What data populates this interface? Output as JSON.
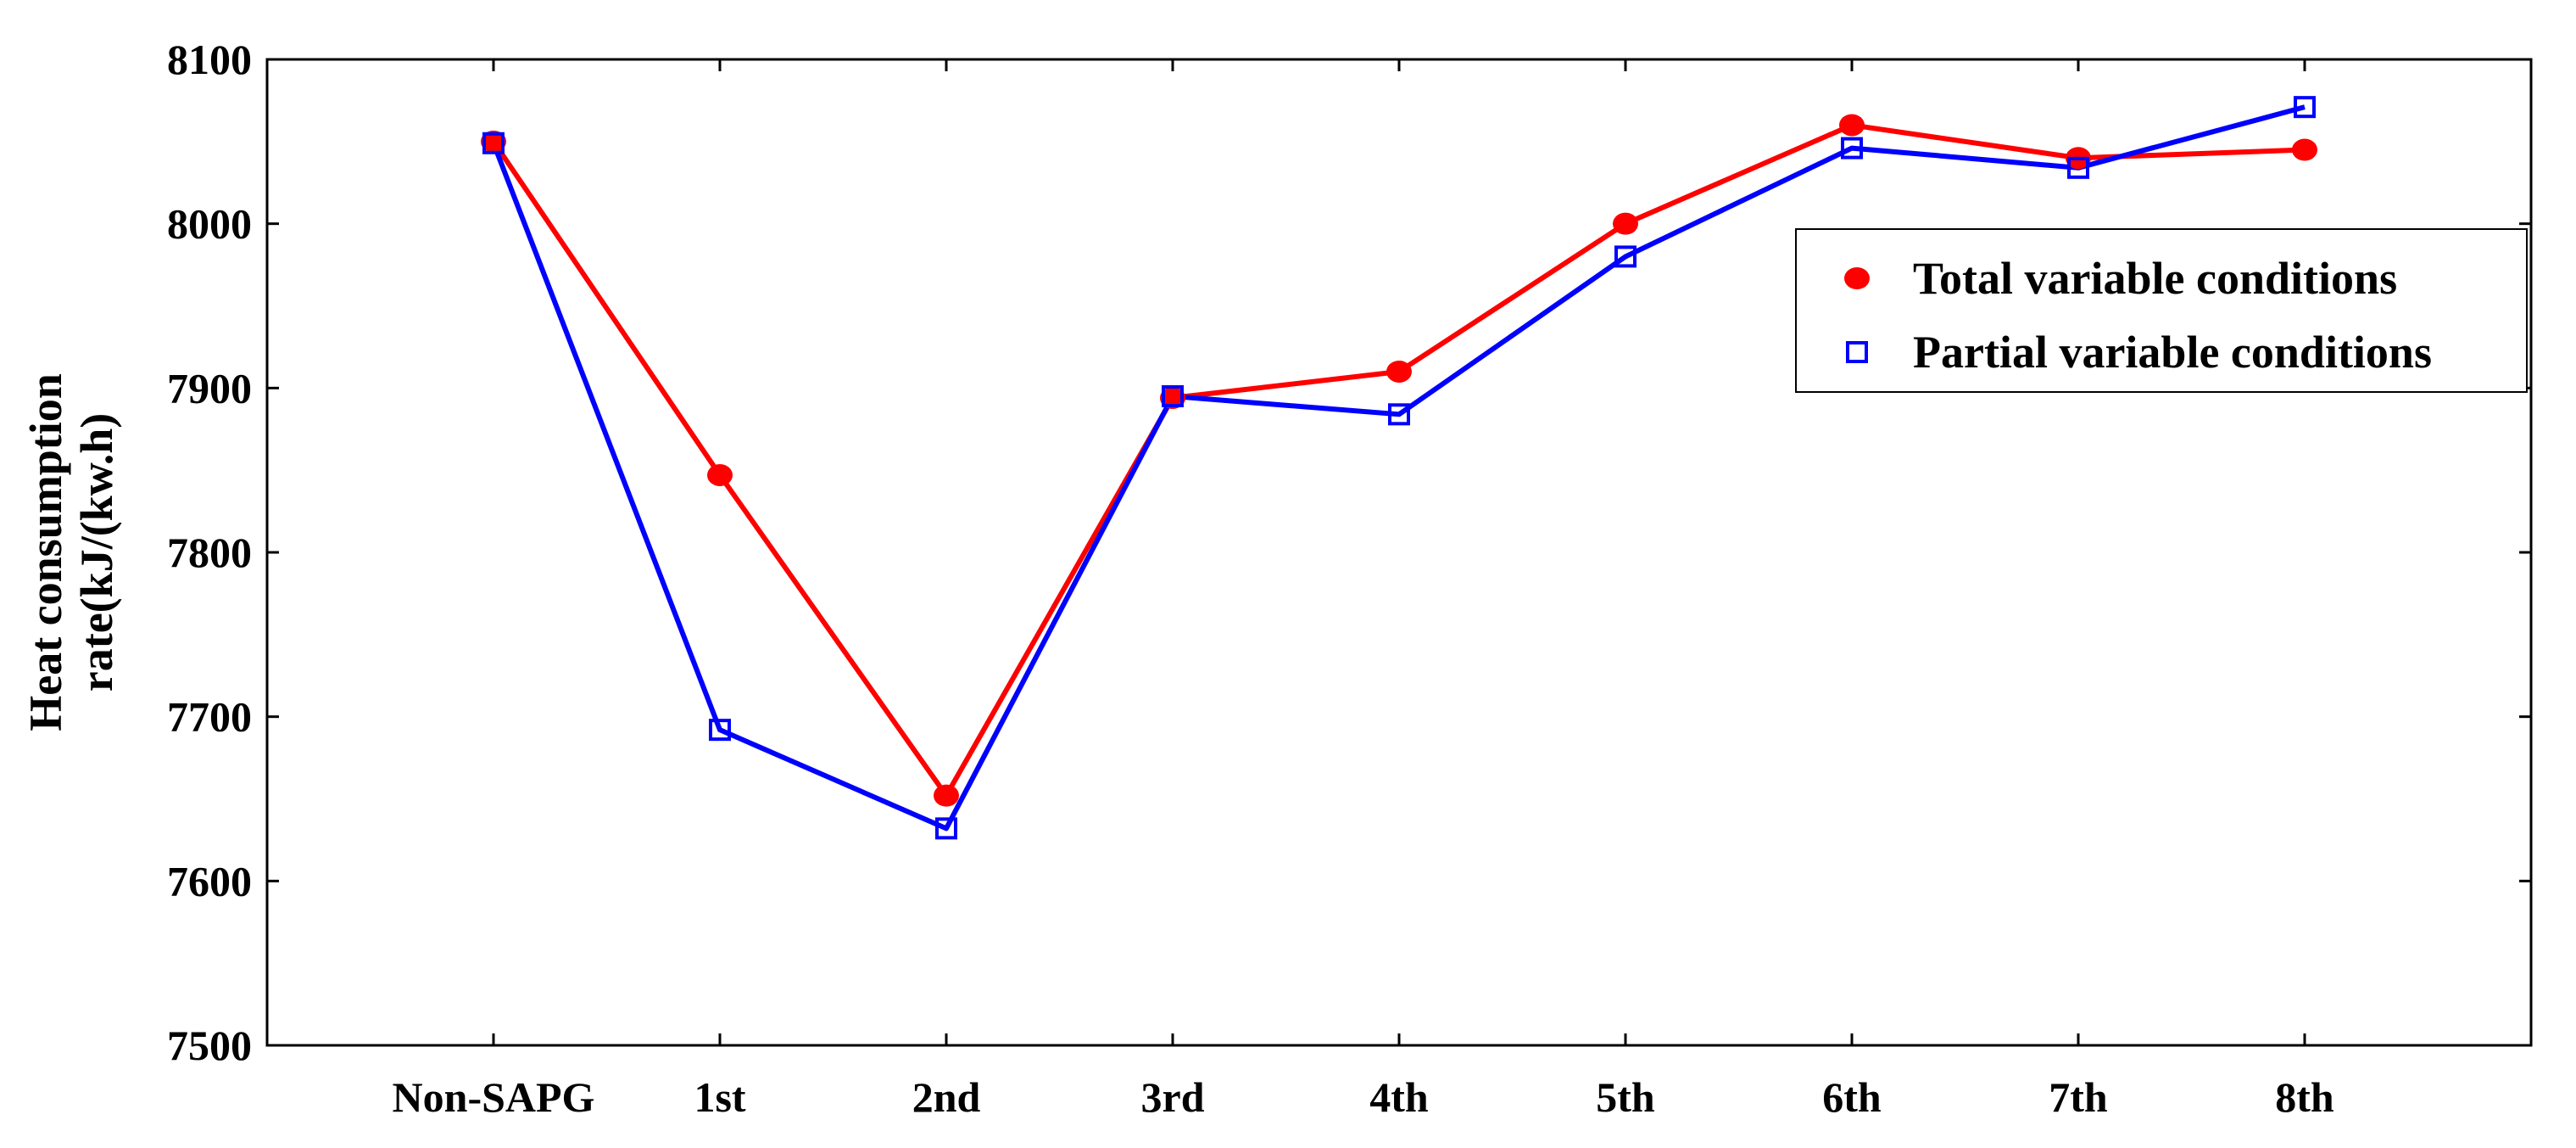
{
  "chart_data": {
    "type": "line",
    "categories": [
      "Non-SAPG",
      "1st",
      "2nd",
      "3rd",
      "4th",
      "5th",
      "6th",
      "7th",
      "8th"
    ],
    "ylabel_lines": [
      "Heat consumption",
      "rate(kJ/(kw.h)"
    ],
    "xlabel": "",
    "ylim": [
      7500,
      8100
    ],
    "yticks": [
      7500,
      7600,
      7700,
      7800,
      7900,
      8000,
      8100
    ],
    "grid": false,
    "legend_position": "upper-right",
    "series": [
      {
        "name": "Total variable conditions",
        "color": "#ff0000",
        "marker": "filled-circle",
        "values": [
          8050,
          7847,
          7652,
          7894,
          7910,
          8000,
          8060,
          8040,
          8045
        ]
      },
      {
        "name": "Partial variable conditions",
        "color": "#0000ff",
        "marker": "open-square",
        "values": [
          8049,
          7692,
          7632,
          7895,
          7884,
          7980,
          8046,
          8034,
          8071
        ]
      }
    ]
  }
}
